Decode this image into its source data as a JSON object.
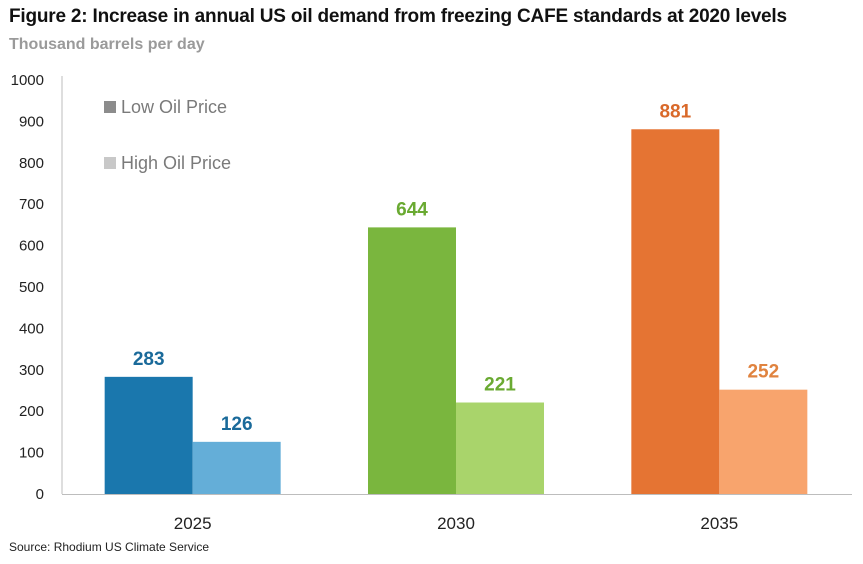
{
  "chart_data": {
    "type": "bar",
    "title": "Figure 2: Increase in annual US oil demand from freezing CAFE standards at 2020 levels",
    "subtitle": "Thousand barrels per day",
    "source": "Source: Rhodium US Climate Service",
    "categories": [
      "2025",
      "2030",
      "2035"
    ],
    "series": [
      {
        "name": "Low Oil Price",
        "values": [
          283,
          644,
          881
        ],
        "colors": [
          "#1a77ad",
          "#7ab63e",
          "#e57433"
        ],
        "label_colors": [
          "#1a6a9a",
          "#6aaa32",
          "#d9692a"
        ],
        "legend_color": "#8c8c8c"
      },
      {
        "name": "High Oil Price",
        "values": [
          126,
          221,
          252
        ],
        "colors": [
          "#64aed8",
          "#a9d46b",
          "#f8a46d"
        ],
        "label_colors": [
          "#1a6a9a",
          "#6aaa32",
          "#e0833f"
        ],
        "legend_color": "#c8c8c8"
      }
    ],
    "ylim": [
      0,
      1000
    ],
    "yticks": [
      "0",
      "100",
      "200",
      "300",
      "400",
      "500",
      "600",
      "700",
      "800",
      "900",
      "1000"
    ],
    "xlabel": "",
    "ylabel": "",
    "grid": false,
    "legend_position": "top-left"
  }
}
